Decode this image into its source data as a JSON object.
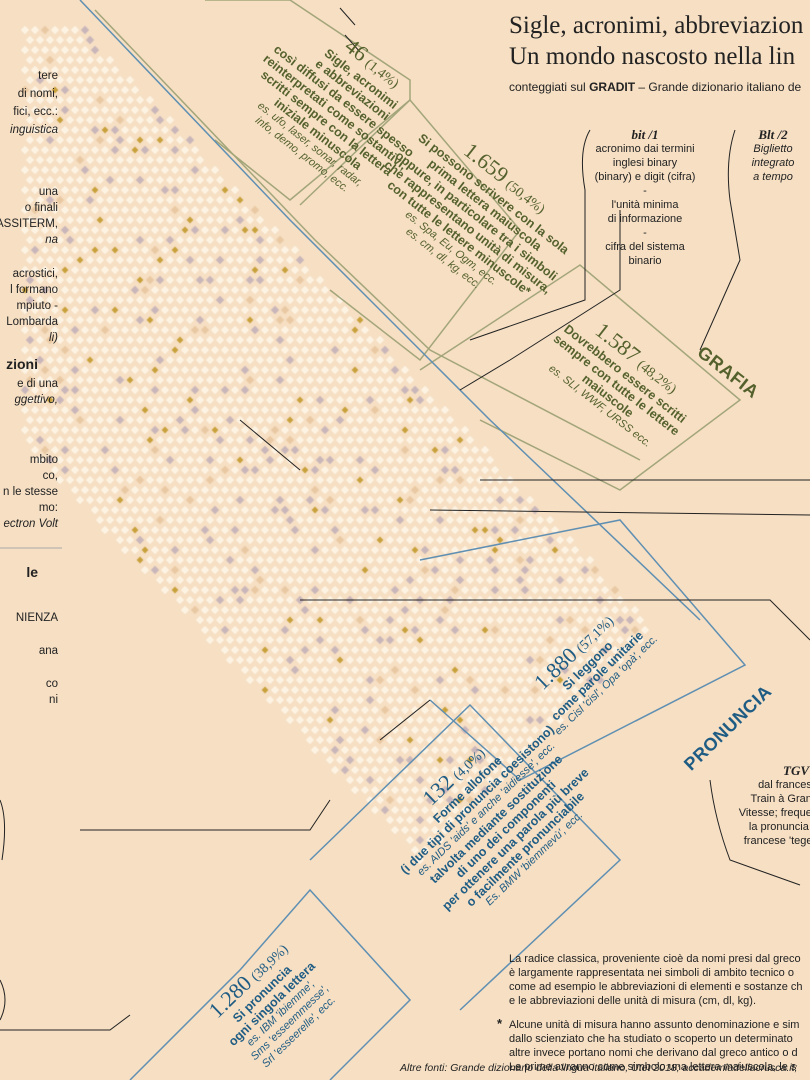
{
  "title_line1": "Sigle, acronimi, abbreviazion",
  "title_line2": "Un mondo nascosto nella lin",
  "subtitle_pre": "conteggiati sul ",
  "subtitle_bold": "GRADIT",
  "subtitle_post": " – Grande dizionario italiano de",
  "left_column": [
    "tere",
    "di nomi,",
    "fici, ecc.:",
    "inguistica",
    "una",
    "o finali",
    "ASSITERM,",
    "na",
    "acrostici,",
    "l formano",
    "mpiuto -",
    "Lombarda",
    "li)",
    "zioni",
    "e di una",
    "ggettivo,",
    "mbito",
    "co,",
    "n le stesse",
    "mo:",
    "ectron Volt",
    "le",
    "NIENZA",
    "ana",
    "co",
    "ni"
  ],
  "grafia_section": "GRAFIA",
  "pronuncia_section": "PRONUNCIA",
  "categories": {
    "g46": {
      "number": "46",
      "pct": "(1,4%)",
      "label_lines": [
        "Sigle, acronimi",
        "e abbreviazioni",
        "così diffusi da essere spesso",
        "reinterpretati come sostantivi,",
        "scritti sempre con la lettera",
        "iniziale minuscola"
      ],
      "example_lines": [
        "es. ufo, laser, sonar, radar,",
        "info, demo, promo, ecc."
      ]
    },
    "g1659": {
      "number": "1.659",
      "pct": "(50,4%)",
      "label_lines": [
        "Si possono scrivere con la sola",
        "prima lettera maiuscola",
        "oppure, in particolare tra i simboli",
        "che rappresentano unità di misura,",
        "con tutte le lettere minuscole*"
      ],
      "example_lines": [
        "es. Spa, Eu, Ogm, ecc.",
        "es. cm, dl, kg, ecc."
      ]
    },
    "g1587": {
      "number": "1.587",
      "pct": "(48,2%)",
      "label_lines": [
        "Dovrebbero essere scritti",
        "sempre con tutte le lettere",
        "maiuscole"
      ],
      "example_lines": [
        "es. SLI, WWF, URSS ecc."
      ]
    },
    "b1880": {
      "number": "1.880",
      "pct": "(57,1%)",
      "label_lines": [
        "Si leggono",
        "come parole unitarie"
      ],
      "example_lines": [
        "es. Cisl 'cisl', Opa 'opà', ecc."
      ]
    },
    "b132": {
      "number": "132",
      "pct": "(4,0%)",
      "label_lines": [
        "Forme allofone",
        "(i due tipi di pronuncia coesistono)"
      ],
      "example_lines": [
        "es. AIDS 'aids' e anche 'aidiesse', ecc."
      ],
      "label2_lines": [
        "talvolta mediante sostituzione",
        "di uno dei componenti",
        "per ottenere una parola più breve",
        "o facilmente pronunciabile"
      ],
      "example2_lines": [
        "Es. BMW 'biemmevù', ecc."
      ]
    },
    "b1280": {
      "number": "1.280",
      "pct": "(38,9%)",
      "label_lines": [
        "Si pronuncia",
        "ogni singola lettera"
      ],
      "example_lines": [
        "es. IBM 'ibiemme',",
        "Sms 'esseemmesse',",
        "Srl 'esseerelle', ecc."
      ]
    }
  },
  "callouts": {
    "bit1": {
      "head": "bit /1",
      "lines": [
        "acronimo dai termini",
        "inglesi binary",
        "(binary) e digit (cifra)",
        "-",
        "l'unità minima",
        "di informazione",
        "-",
        "cifra del sistema",
        "binario"
      ]
    },
    "bit2": {
      "head": "Blt /2",
      "lines": [
        "Biglietto",
        "integrato",
        "a tempo"
      ]
    },
    "tgv": {
      "head": "TGV",
      "lines": [
        "dal francese",
        "Train à Grand",
        "Vitesse; frequen",
        "la pronuncia a",
        "francese 'tegev"
      ]
    }
  },
  "notes": {
    "radice": [
      "La radice classica, proveniente cioè da nomi presi dal greco",
      "è largamente rappresentata nei simboli di ambito tecnico o",
      "come ad esempio le abbreviazioni di elementi e sostanze ch",
      "e le abbreviazioni delle unità di misura (cm, dl, kg)."
    ],
    "asterisk": [
      "Alcune unità di misura hanno assunto denominazione e sim",
      "dallo scienziato che ha studiato o scoperto un determinato",
      "altre invece portano nomi che derivano dal greco antico o d",
      "Le prime avranno come simbolo una lettera maiuscola, le s"
    ],
    "asterisk_mark": "*"
  },
  "source": "Altre fonti: Grande dizionario della lingua italiano, Utet 2018; accademiadellacrusca.it;",
  "colors": {
    "background": "#f6dfc3",
    "grafia": "#55612c",
    "pronuncia": "#1f5c84",
    "cell": "#fdf3e3",
    "cell_dark": "#c9b6ba",
    "cell_gold": "#c9a13c",
    "frame_green": "#a3a57a",
    "frame_blue": "#5f8fb2"
  }
}
